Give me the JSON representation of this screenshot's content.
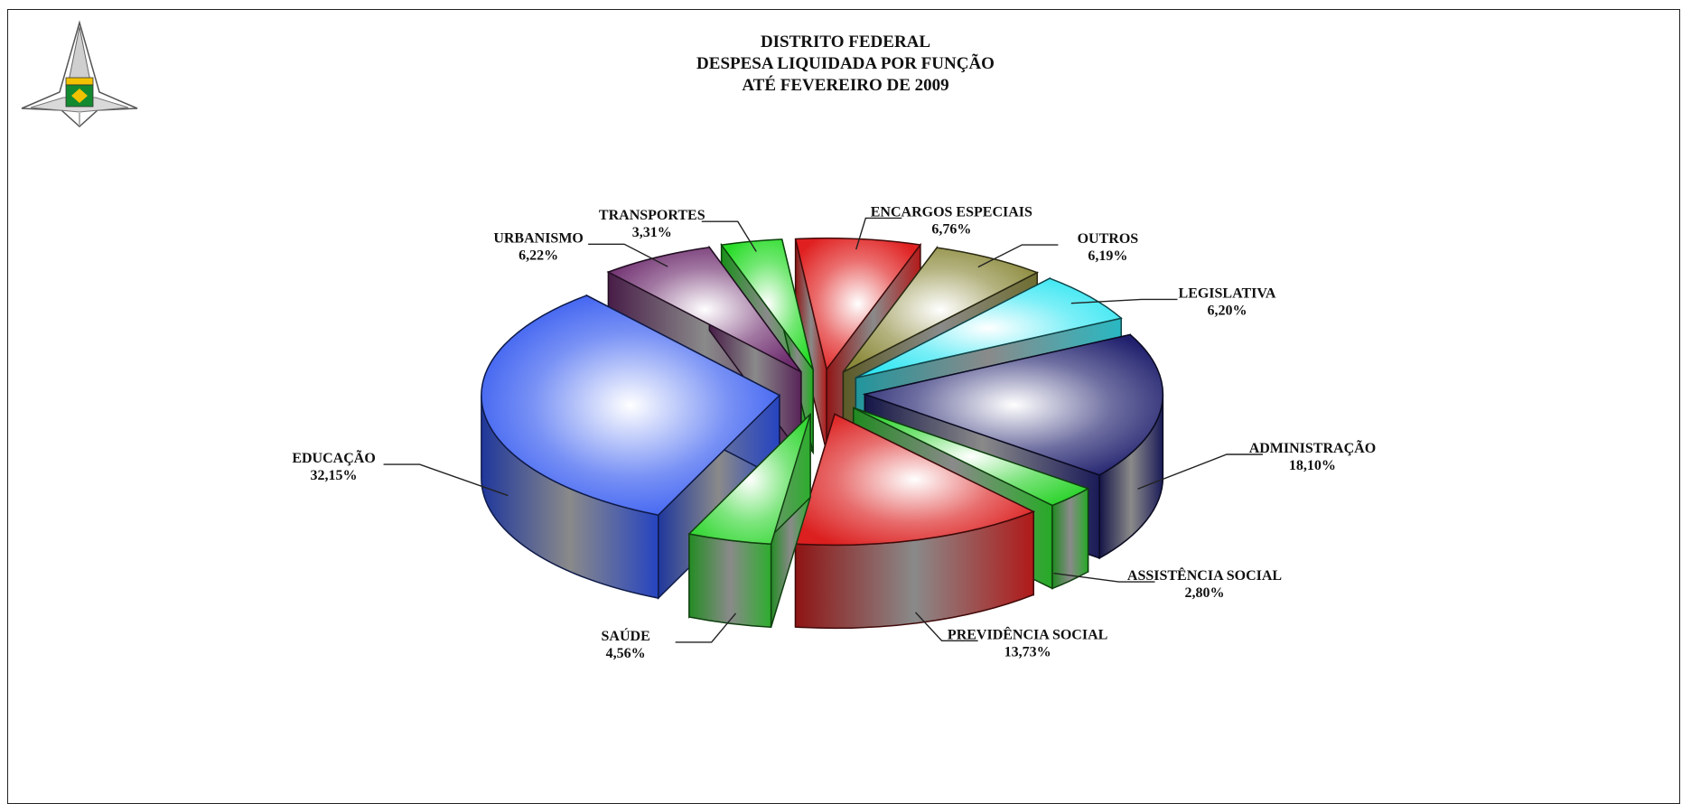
{
  "chart_data": {
    "type": "pie",
    "style": "3d-exploded",
    "title_lines": [
      "DISTRITO FEDERAL",
      "DESPESA LIQUIDADA POR FUNÇÃO",
      "ATÉ  FEVEREIRO DE  2009"
    ],
    "slices": [
      {
        "label": "ENCARGOS ESPECIAIS",
        "pct_text": "6,76%",
        "value": 6.76,
        "color": "#e02020"
      },
      {
        "label": "OUTROS",
        "pct_text": "6,19%",
        "value": 6.19,
        "color": "#8c8a3c"
      },
      {
        "label": "LEGISLATIVA",
        "pct_text": "6,20%",
        "value": 6.2,
        "color": "#33e6f2"
      },
      {
        "label": "ADMINISTRAÇÃO",
        "pct_text": "18,10%",
        "value": 18.1,
        "color": "#20206e"
      },
      {
        "label": "ASSISTÊNCIA SOCIAL",
        "pct_text": "2,80%",
        "value": 2.8,
        "color": "#2fd42f"
      },
      {
        "label": "PREVIDÊNCIA SOCIAL",
        "pct_text": "13,73%",
        "value": 13.73,
        "color": "#dc1f1f"
      },
      {
        "label": "SAÚDE",
        "pct_text": "4,56%",
        "value": 4.56,
        "color": "#38d838"
      },
      {
        "label": "EDUCAÇÃO",
        "pct_text": "32,15%",
        "value": 32.15,
        "color": "#2f55f0"
      },
      {
        "label": "URBANISMO",
        "pct_text": "6,22%",
        "value": 6.22,
        "color": "#6e2d6e"
      },
      {
        "label": "TRANSPORTES",
        "pct_text": "3,31%",
        "value": 3.31,
        "color": "#26dc26"
      }
    ]
  }
}
